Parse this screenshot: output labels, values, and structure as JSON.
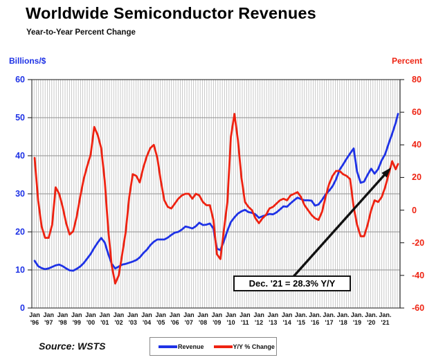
{
  "title": "Worldwide Semiconductor Revenues",
  "subtitle": "Year-to-Year Percent Change",
  "left_axis": {
    "label": "Billions/$",
    "color": "#1e32e6",
    "ticks": [
      0,
      10,
      20,
      30,
      40,
      50,
      60
    ],
    "range": [
      0,
      60
    ]
  },
  "right_axis": {
    "label": "Percent",
    "color": "#ee2211",
    "ticks": [
      80,
      60,
      40,
      20,
      0,
      -20,
      -40,
      -60
    ],
    "range": [
      -60,
      80
    ]
  },
  "x_axis": {
    "months": [
      "Jan",
      "Jan",
      "Jan",
      "Jan",
      "Jan",
      "Jan",
      "Jan",
      "Jan",
      "Jan",
      "Jan",
      "Jan",
      "Jan",
      "Jan",
      "Jan",
      "Jan",
      "Jan",
      "Jan",
      "Jan",
      "Jan",
      "Jan.",
      "Jan.",
      "Jan.",
      "Jan.",
      "Jan.",
      "Jan.",
      "Jan."
    ],
    "years": [
      "'96",
      "'97",
      "'98",
      "'99",
      "'00",
      "'01",
      "'02",
      "'03",
      "'04",
      "'05",
      "'06",
      "'07",
      "'08",
      "'09",
      "'10",
      "'11",
      "'12",
      "'13",
      "'14",
      "'15",
      "'16",
      "'17",
      "'18",
      "'19",
      "'20",
      "'21"
    ]
  },
  "legend": {
    "items": [
      {
        "label": "Revenue",
        "color": "#1e32e6"
      },
      {
        "label": "Y/Y % Change",
        "color": "#ee2211"
      }
    ]
  },
  "source": "Source: WSTS",
  "annotation": {
    "text": "Dec. '21 = 28.3% Y/Y"
  },
  "chart_data": {
    "type": "line",
    "x_description": "Monthly timeline Jan 1996 - Dec 2021; series sampled quarterly (Jan, Apr, Jul, Oct) each year plus a final Dec 2021 point",
    "years": [
      1996,
      1997,
      1998,
      1999,
      2000,
      2001,
      2002,
      2003,
      2004,
      2005,
      2006,
      2007,
      2008,
      2009,
      2010,
      2011,
      2012,
      2013,
      2014,
      2015,
      2016,
      2017,
      2018,
      2019,
      2020,
      2021
    ],
    "left_ylim": [
      0,
      60
    ],
    "right_ylim": [
      -60,
      80
    ],
    "grid": "dense vertical monthly gridlines; horizontal gridlines every 10 on left scale",
    "series": [
      {
        "name": "Revenue",
        "axis": "left",
        "unit": "US$ billions per month",
        "color": "#1e32e6",
        "values": [
          12.4,
          11.0,
          10.5,
          10.2,
          10.4,
          10.8,
          11.2,
          11.4,
          11.0,
          10.4,
          9.9,
          9.8,
          10.3,
          10.9,
          11.8,
          13.0,
          14.2,
          15.8,
          17.2,
          18.4,
          17.2,
          14.2,
          11.6,
          10.4,
          10.9,
          11.4,
          11.6,
          11.9,
          12.2,
          12.6,
          13.3,
          14.4,
          15.3,
          16.5,
          17.4,
          18.0,
          18.0,
          18.0,
          18.5,
          19.2,
          19.8,
          20.0,
          20.6,
          21.4,
          21.2,
          20.9,
          21.5,
          22.4,
          21.8,
          21.9,
          22.2,
          20.9,
          15.6,
          15.2,
          17.6,
          20.3,
          22.6,
          23.8,
          24.8,
          25.4,
          25.8,
          25.2,
          25.0,
          24.6,
          23.7,
          24.1,
          24.4,
          24.7,
          24.6,
          25.1,
          25.9,
          26.7,
          26.6,
          27.5,
          28.3,
          29.0,
          28.6,
          28.3,
          28.3,
          28.2,
          26.9,
          27.2,
          28.4,
          29.8,
          30.8,
          32.0,
          33.8,
          36.3,
          37.7,
          39.2,
          40.6,
          41.9,
          35.8,
          32.9,
          33.2,
          35.0,
          36.6,
          35.3,
          36.5,
          38.8,
          40.4,
          43.2,
          45.8,
          48.6,
          51.0
        ]
      },
      {
        "name": "Y/Y % Change",
        "axis": "right",
        "unit": "percent",
        "color": "#ee2211",
        "values": [
          32,
          6,
          -10,
          -17,
          -17,
          -9,
          14,
          10,
          2,
          -8,
          -15,
          -13,
          -4,
          8,
          19,
          27,
          34,
          51,
          46,
          38,
          18,
          -12,
          -34,
          -45,
          -40,
          -27,
          -13,
          8,
          22,
          21,
          17,
          26,
          33,
          38,
          40,
          32,
          18,
          6,
          2,
          1,
          4,
          7,
          9,
          10,
          10,
          7,
          10,
          9,
          5,
          3,
          3,
          -6,
          -27,
          -30,
          -12,
          5,
          45,
          59,
          43,
          20,
          5,
          2,
          0,
          -5,
          -8,
          -5,
          -3,
          1,
          2,
          4,
          6,
          7,
          6,
          9,
          10,
          11,
          8,
          3,
          0,
          -3,
          -5,
          -6,
          -1,
          8,
          16,
          21,
          24,
          24,
          22,
          21,
          19,
          2,
          -9,
          -16,
          -16,
          -9,
          0,
          6,
          5,
          8,
          14,
          22,
          30,
          25,
          28.3
        ]
      }
    ],
    "final_point": {
      "label": "Dec. '21",
      "yoy_percent": 28.3,
      "revenue_billions": 51.0
    }
  }
}
